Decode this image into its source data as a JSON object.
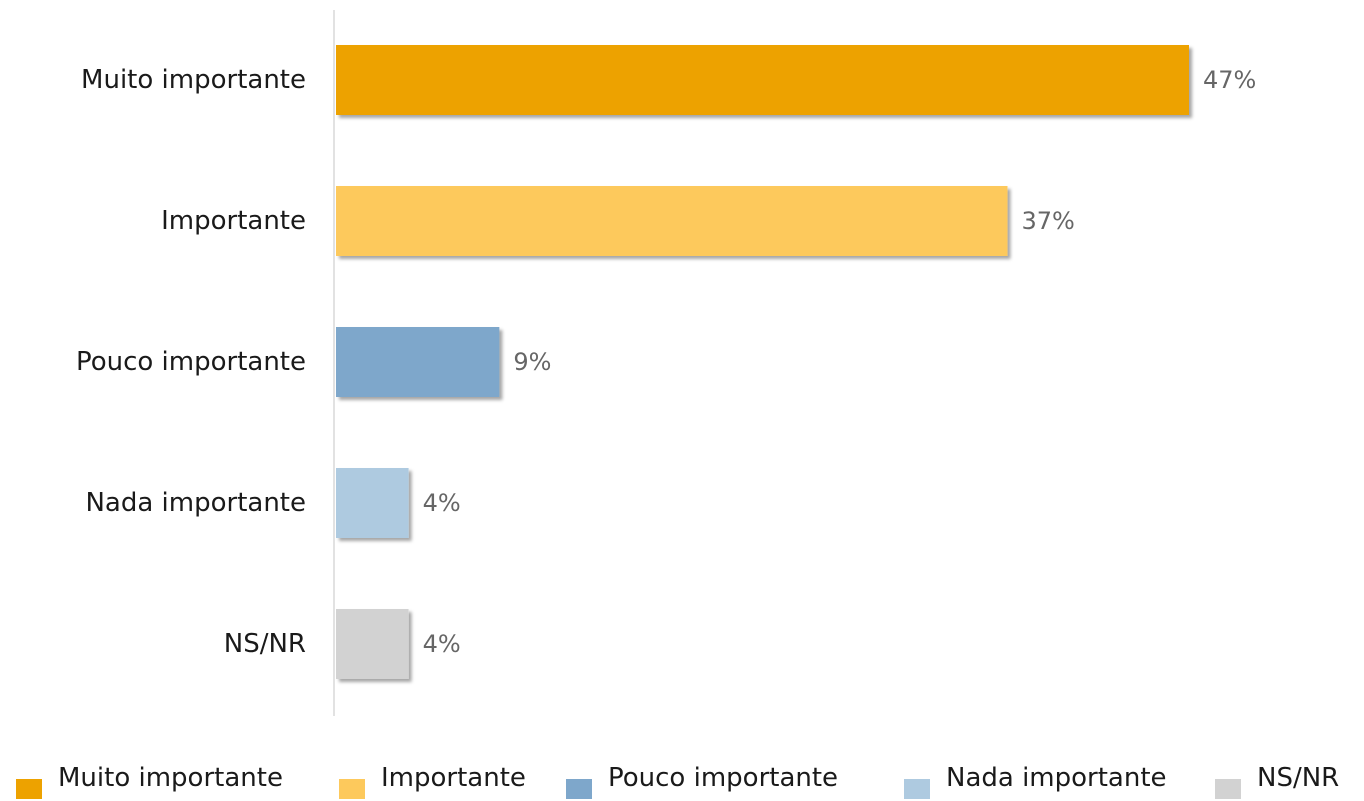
{
  "chart_data": {
    "type": "bar",
    "orientation": "horizontal",
    "title": "",
    "xlabel": "",
    "ylabel": "",
    "categories": [
      "Muito importante",
      "Importante",
      "Pouco importante",
      "Nada importante",
      "NS/NR"
    ],
    "values": [
      47,
      37,
      9,
      4,
      4
    ],
    "value_labels": [
      "47%",
      "37%",
      "9%",
      "4%",
      "4%"
    ],
    "unit": "%",
    "xlim": [
      0,
      53
    ],
    "grid": false,
    "legend": {
      "placement": "bottom",
      "entries": [
        "Muito importante",
        "Importante",
        "Pouco importante",
        "Nada importante",
        "NS/NR"
      ]
    },
    "colors": [
      "#EDA200",
      "#FDC95C",
      "#7EA7CB",
      "#AECAE0",
      "#D2D2D2"
    ]
  }
}
